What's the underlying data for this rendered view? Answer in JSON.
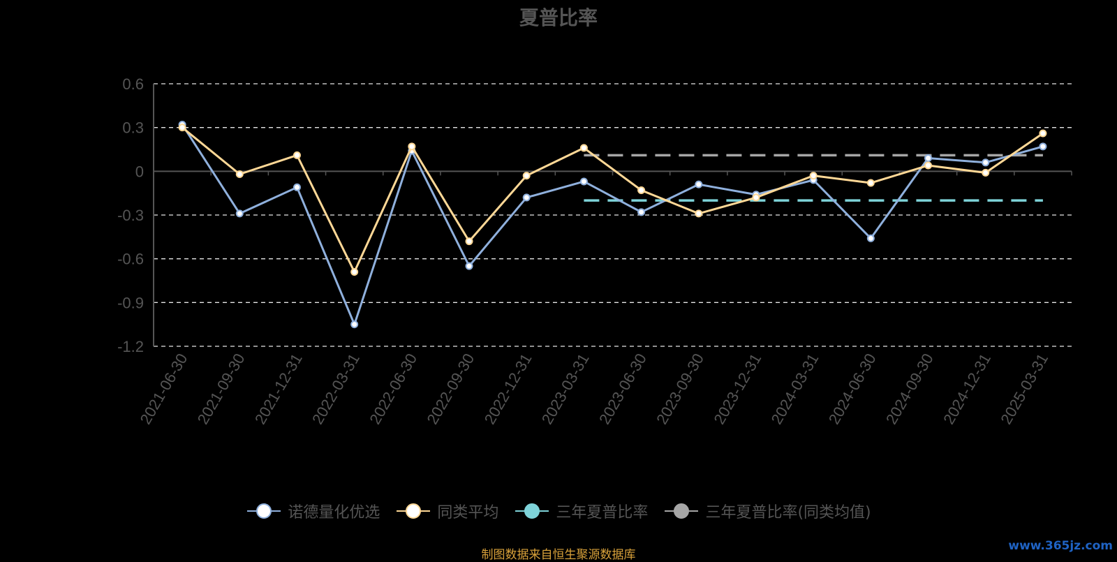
{
  "chart_data": {
    "type": "line",
    "title": "夏普比率",
    "categories": [
      "2021-06-30",
      "2021-09-30",
      "2021-12-31",
      "2022-03-31",
      "2022-06-30",
      "2022-09-30",
      "2022-12-31",
      "2023-03-31",
      "2023-06-30",
      "2023-09-30",
      "2023-12-31",
      "2024-03-31",
      "2024-06-30",
      "2024-09-30",
      "2024-12-31",
      "2025-03-31"
    ],
    "y_ticks": [
      "0.6",
      "0.3",
      "0",
      "-0.3",
      "-0.6",
      "-0.9",
      "-1.2"
    ],
    "ylim": [
      -1.2,
      0.6
    ],
    "grid": true,
    "legend_position": "bottom",
    "series": [
      {
        "name": "诺德量化优选",
        "color": "#8fb0dd",
        "values": [
          0.32,
          -0.29,
          -0.11,
          -1.05,
          0.14,
          -0.65,
          -0.18,
          -0.07,
          -0.28,
          -0.09,
          -0.16,
          -0.06,
          -0.46,
          0.09,
          0.06,
          0.17
        ]
      },
      {
        "name": "同类平均",
        "color": "#ffd896",
        "values": [
          0.3,
          -0.02,
          0.11,
          -0.69,
          0.17,
          -0.48,
          -0.03,
          0.16,
          -0.13,
          -0.29,
          -0.18,
          -0.03,
          -0.08,
          0.04,
          -0.01,
          0.26
        ]
      },
      {
        "name": "三年夏普比率",
        "color": "#7ed3d9",
        "dashed": true,
        "start": "2023-03-31",
        "end": "2025-03-31",
        "value": -0.2
      },
      {
        "name": "三年夏普比率(同类均值)",
        "color": "#a6a6a6",
        "dashed": true,
        "start": "2023-03-31",
        "end": "2025-03-31",
        "value": 0.11
      }
    ],
    "source_note": "制图数据来自恒生聚源数据库",
    "watermark": "www.365jz.com"
  }
}
